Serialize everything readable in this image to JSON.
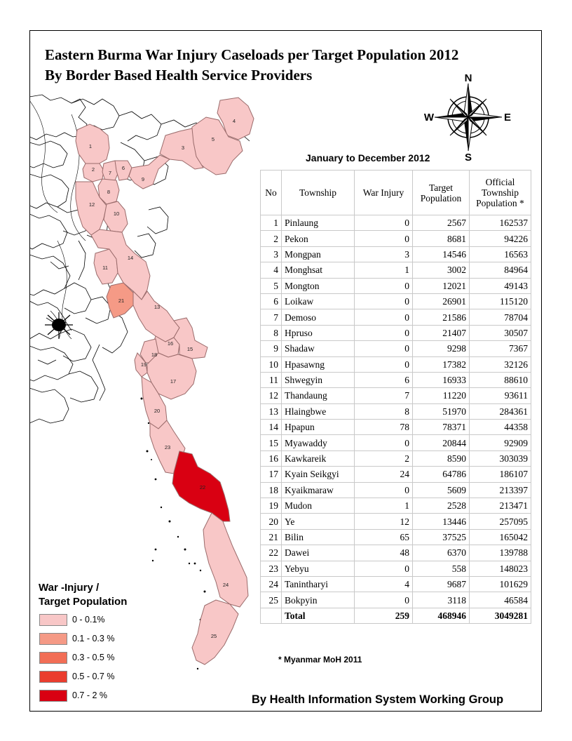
{
  "title": {
    "line1": "Eastern Burma War Injury Caseloads per Target Population 2012",
    "line2": "By Border Based Health Service Providers"
  },
  "subtitle": "January to December 2012",
  "compass": {
    "n": "N",
    "s": "S",
    "e": "E",
    "w": "W",
    "icon": "compass-rose-icon"
  },
  "table": {
    "headers": {
      "no": "No",
      "township": "Township",
      "war_injury": "War Injury",
      "target_l1": "Target",
      "target_l2": "Population",
      "official_l1": "Official",
      "official_l2": "Township",
      "official_l3": "Population *"
    },
    "rows": [
      [
        "1",
        "Pinlaung",
        "0",
        "2567",
        "162537"
      ],
      [
        "2",
        "Pekon",
        "0",
        "8681",
        "94226"
      ],
      [
        "3",
        "Mongpan",
        "3",
        "14546",
        "16563"
      ],
      [
        "4",
        "Monghsat",
        "1",
        "3002",
        "84964"
      ],
      [
        "5",
        "Mongton",
        "0",
        "12021",
        "49143"
      ],
      [
        "6",
        "Loikaw",
        "0",
        "26901",
        "115120"
      ],
      [
        "7",
        "Demoso",
        "0",
        "21586",
        "78704"
      ],
      [
        "8",
        "Hpruso",
        "0",
        "21407",
        "30507"
      ],
      [
        "9",
        "Shadaw",
        "0",
        "9298",
        "7367"
      ],
      [
        "10",
        "Hpasawng",
        "0",
        "17382",
        "32126"
      ],
      [
        "11",
        "Shwegyin",
        "6",
        "16933",
        "88610"
      ],
      [
        "12",
        "Thandaung",
        "7",
        "11220",
        "93611"
      ],
      [
        "13",
        "Hlaingbwe",
        "8",
        "51970",
        "284361"
      ],
      [
        "14",
        "Hpapun",
        "78",
        "78371",
        "44358"
      ],
      [
        "15",
        "Myawaddy",
        "0",
        "20844",
        "92909"
      ],
      [
        "16",
        "Kawkareik",
        "2",
        "8590",
        "303039"
      ],
      [
        "17",
        "Kyain Seikgyi",
        "24",
        "64786",
        "186107"
      ],
      [
        "18",
        "Kyaikmaraw",
        "0",
        "5609",
        "213397"
      ],
      [
        "19",
        "Mudon",
        "1",
        "2528",
        "213471"
      ],
      [
        "20",
        "Ye",
        "12",
        "13446",
        "257095"
      ],
      [
        "21",
        "Bilin",
        "65",
        "37525",
        "165042"
      ],
      [
        "22",
        "Dawei",
        "48",
        "6370",
        "139788"
      ],
      [
        "23",
        "Yebyu",
        "0",
        "558",
        "148023"
      ],
      [
        "24",
        "Tanintharyi",
        "4",
        "9687",
        "101629"
      ],
      [
        "25",
        "Bokpyin",
        "0",
        "3118",
        "46584"
      ]
    ],
    "total": {
      "label": "Total",
      "war_injury": "259",
      "target": "468946",
      "official": "3049281"
    }
  },
  "footnote": "* Myanmar MoH 2011",
  "credit": "By Health Information System Working Group",
  "legend": {
    "title_l1": "War -Injury /",
    "title_l2": "Target Population",
    "items": [
      {
        "label": "0 - 0.1%",
        "color": "#f8c7c7"
      },
      {
        "label": "0.1 - 0.3 %",
        "color": "#f59a86"
      },
      {
        "label": "0.3 - 0.5 %",
        "color": "#f26e56"
      },
      {
        "label": "0.5 - 0.7 %",
        "color": "#ea3d2e"
      },
      {
        "label": "0.7 - 2 %",
        "color": "#d90012"
      }
    ]
  },
  "map_labels": [
    "1",
    "2",
    "3",
    "4",
    "5",
    "6",
    "7",
    "8",
    "9",
    "10",
    "11",
    "12",
    "13",
    "14",
    "15",
    "16",
    "17",
    "18",
    "19",
    "20",
    "21",
    "22",
    "23",
    "24",
    "25"
  ],
  "region_colors": {
    "low": "#f8c7c7",
    "mid": "#f59a86",
    "high": "#d90012"
  }
}
